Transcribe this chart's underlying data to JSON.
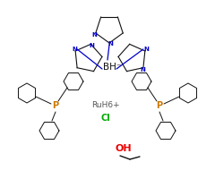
{
  "bg_color": "#ffffff",
  "bh_label": "BH⁻",
  "ru_label": "RuH6+",
  "cl_label": "Cl",
  "oh_label": "OH",
  "p_color": "#cc7700",
  "n_color": "#0000cc",
  "cl_color": "#00aa00",
  "oh_color": "#ee0000",
  "ru_color": "#555555",
  "bond_color": "#111111",
  "ring_color": "#111111",
  "figw": 2.4,
  "figh": 2.0,
  "dpi": 100
}
